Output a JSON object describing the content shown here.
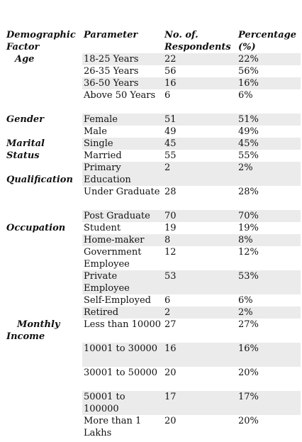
{
  "headers": {
    "factor": "Demographic Factor",
    "parameter": "Parameter",
    "respondents": "No. of. Respondents",
    "percentage": "Percentage (%)"
  },
  "categories": [
    {
      "label": "Age",
      "row": 0
    },
    {
      "label": "Gender",
      "row": 4
    },
    {
      "label": "Marital Status",
      "row": 6
    },
    {
      "label": "Qualification",
      "row": 8
    },
    {
      "label": "Occupation",
      "row": 11
    },
    {
      "label": "Monthly Income",
      "row": 17
    }
  ],
  "rows": [
    {
      "param": "18-25 Years",
      "n": "22",
      "pct": "22%"
    },
    {
      "param": "26-35 Years",
      "n": "56",
      "pct": "56%"
    },
    {
      "param": "36-50 Years",
      "n": "16",
      "pct": "16%"
    },
    {
      "param": "Above 50 Years",
      "n": "6",
      "pct": "6%"
    },
    {
      "param": "Female",
      "n": "51",
      "pct": "51%"
    },
    {
      "param": "Male",
      "n": "49",
      "pct": "49%"
    },
    {
      "param": "Single",
      "n": "45",
      "pct": "45%"
    },
    {
      "param": "Married",
      "n": "55",
      "pct": "55%"
    },
    {
      "param": "Primary Education",
      "n": "2",
      "pct": "2%"
    },
    {
      "param": "Under Graduate",
      "n": "28",
      "pct": "28%"
    },
    {
      "param": "Post Graduate",
      "n": "70",
      "pct": "70%"
    },
    {
      "param": "Student",
      "n": "19",
      "pct": "19%"
    },
    {
      "param": "Home-maker",
      "n": "8",
      "pct": "8%"
    },
    {
      "param": "Government Employee",
      "n": "12",
      "pct": "12%"
    },
    {
      "param": "Private Employee",
      "n": "53",
      "pct": "53%"
    },
    {
      "param": "Self-Employed",
      "n": "6",
      "pct": "6%"
    },
    {
      "param": "Retired",
      "n": "2",
      "pct": "2%"
    },
    {
      "param": "Less than 10000",
      "n": "27",
      "pct": "27%"
    },
    {
      "param": "10001 to 30000",
      "n": "16",
      "pct": "16%"
    },
    {
      "param": "30001 to 50000",
      "n": "20",
      "pct": "20%"
    },
    {
      "param": "50001 to 100000",
      "n": "17",
      "pct": "17%"
    },
    {
      "param": "More than 1 Lakhs",
      "n": "20",
      "pct": "20%"
    }
  ]
}
